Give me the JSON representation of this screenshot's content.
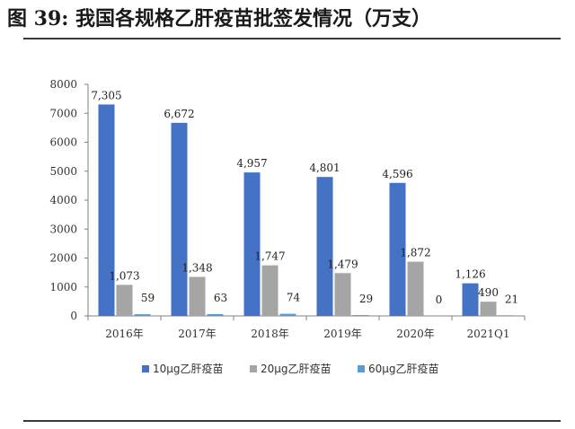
{
  "figure": {
    "title": "图 39: 我国各规格乙肝疫苗批签发情况（万支）"
  },
  "chart_data": {
    "type": "bar",
    "title": "",
    "xlabel": "",
    "ylabel": "",
    "categories": [
      "2016年",
      "2017年",
      "2018年",
      "2019年",
      "2020年",
      "2021Q1"
    ],
    "series": [
      {
        "name": "10μg乙肝疫苗",
        "color": "#4472C4",
        "values": [
          7305,
          6672,
          4957,
          4801,
          4596,
          1126
        ],
        "labels": [
          "7,305",
          "6,672",
          "4,957",
          "4,801",
          "4,596",
          "1,126"
        ]
      },
      {
        "name": "20μg乙肝疫苗",
        "color": "#A5A5A5",
        "values": [
          1073,
          1348,
          1747,
          1479,
          1872,
          490
        ],
        "labels": [
          "1,073",
          "1,348",
          "1,747",
          "1,479",
          "1,872",
          "490"
        ]
      },
      {
        "name": "60μg乙肝疫苗",
        "color": "#5B9BD5",
        "values": [
          59,
          63,
          74,
          29,
          0,
          21
        ],
        "labels": [
          "59",
          "63",
          "74",
          "29",
          "0",
          "21"
        ]
      }
    ],
    "ylim": [
      0,
      8000
    ],
    "yticks": [
      0,
      1000,
      2000,
      3000,
      4000,
      5000,
      6000,
      7000,
      8000
    ],
    "grid": false,
    "legend_position": "bottom"
  }
}
